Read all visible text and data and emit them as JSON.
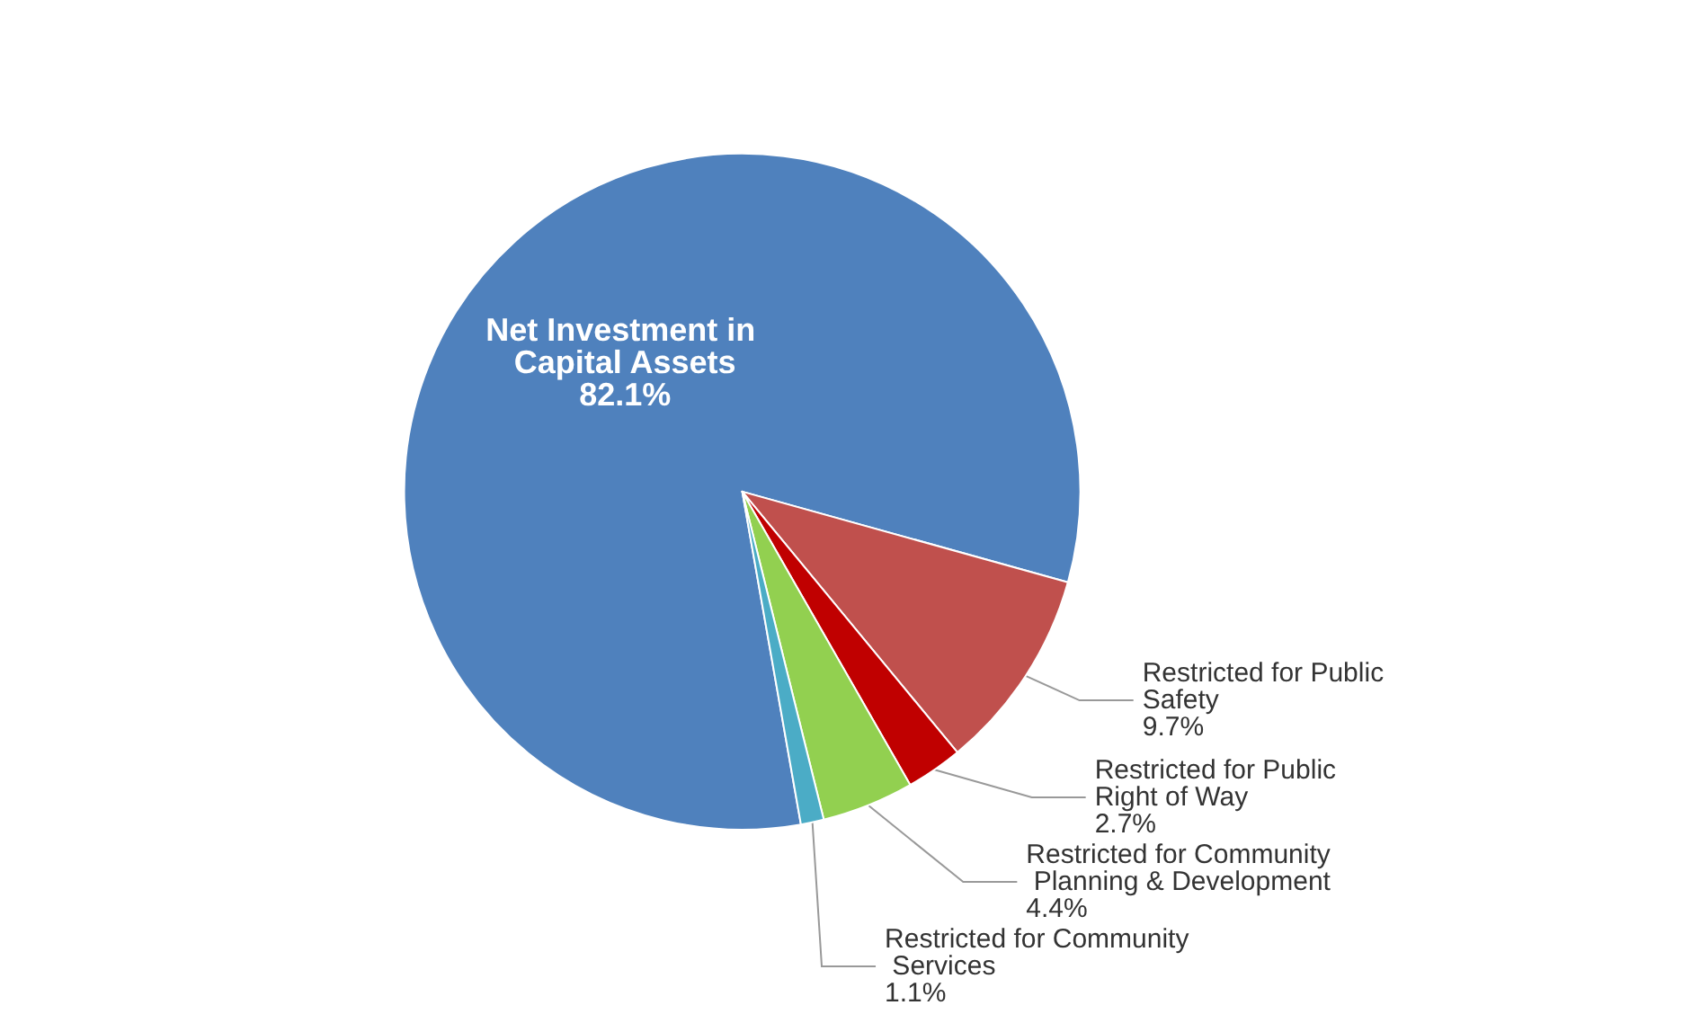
{
  "chart_data": {
    "type": "pie",
    "categories": [
      "Net Investment in Capital Assets",
      "Restricted for Public Safety",
      "Restricted for Public Right of Way",
      "Restricted for Community Planning & Development",
      "Restricted for Community Services"
    ],
    "values": [
      82.1,
      9.7,
      2.7,
      4.4,
      1.1
    ],
    "colors": [
      "#4f81bd",
      "#c0504d",
      "#c00000",
      "#92d050",
      "#4bacc6"
    ],
    "value_labels": [
      "82.1%",
      "9.7%",
      "2.7%",
      "4.4%",
      "1.1%"
    ]
  }
}
